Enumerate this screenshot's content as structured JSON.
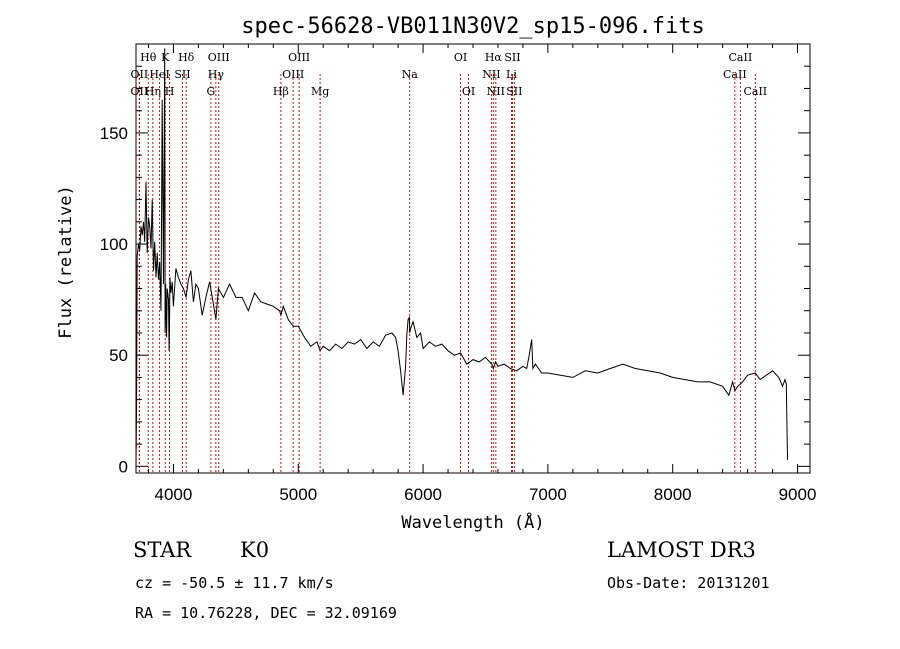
{
  "chart_data": {
    "type": "line",
    "title": "spec-56628-VB011N30V2_sp15-096.fits",
    "xlabel": "Wavelength (Å)",
    "ylabel": "Flux (relative)",
    "xlim": [
      3700,
      9100
    ],
    "ylim": [
      -3,
      190
    ],
    "xticks": [
      4000,
      5000,
      6000,
      7000,
      8000,
      9000
    ],
    "yticks": [
      0,
      50,
      100,
      150
    ],
    "series": [
      {
        "name": "flux",
        "x": [
          3700,
          3705,
          3710,
          3720,
          3730,
          3740,
          3750,
          3760,
          3770,
          3780,
          3790,
          3800,
          3810,
          3820,
          3830,
          3840,
          3850,
          3860,
          3870,
          3880,
          3890,
          3900,
          3910,
          3920,
          3930,
          3933,
          3938,
          3945,
          3950,
          3960,
          3965,
          3968,
          3972,
          3980,
          3990,
          4000,
          4020,
          4040,
          4060,
          4080,
          4101,
          4120,
          4140,
          4160,
          4180,
          4200,
          4230,
          4260,
          4290,
          4320,
          4340,
          4360,
          4400,
          4450,
          4500,
          4550,
          4600,
          4650,
          4700,
          4750,
          4800,
          4850,
          4861,
          4880,
          4920,
          4960,
          5000,
          5050,
          5100,
          5150,
          5175,
          5200,
          5250,
          5300,
          5350,
          5400,
          5450,
          5500,
          5550,
          5600,
          5650,
          5700,
          5750,
          5780,
          5800,
          5820,
          5840,
          5860,
          5870,
          5880,
          5890,
          5893,
          5900,
          5920,
          5950,
          5980,
          6000,
          6050,
          6100,
          6150,
          6200,
          6250,
          6300,
          6350,
          6400,
          6450,
          6500,
          6550,
          6563,
          6580,
          6600,
          6650,
          6700,
          6750,
          6800,
          6830,
          6850,
          6870,
          6880,
          6900,
          6950,
          7000,
          7100,
          7200,
          7300,
          7400,
          7500,
          7600,
          7700,
          7800,
          7900,
          8000,
          8100,
          8200,
          8300,
          8400,
          8450,
          8480,
          8498,
          8520,
          8542,
          8560,
          8600,
          8662,
          8700,
          8750,
          8800,
          8850,
          8880,
          8900,
          8910,
          8920
        ],
        "y": [
          0,
          30,
          95,
          100,
          97,
          108,
          104,
          110,
          101,
          128,
          96,
          112,
          108,
          98,
          120,
          88,
          101,
          85,
          96,
          84,
          92,
          70,
          165,
          82,
          188,
          60,
          82,
          58,
          80,
          75,
          52,
          63,
          85,
          78,
          83,
          72,
          89,
          85,
          82,
          80,
          76,
          84,
          88,
          74,
          82,
          80,
          68,
          76,
          83,
          73,
          66,
          80,
          76,
          82,
          76,
          76,
          70,
          78,
          74,
          73,
          72,
          70,
          68,
          72,
          66,
          63,
          63,
          58,
          54,
          56,
          52,
          54,
          52,
          55,
          53,
          56,
          55,
          57,
          53,
          56,
          54,
          59,
          60,
          58,
          52,
          43,
          32,
          45,
          59,
          66,
          67,
          60,
          62,
          65,
          58,
          60,
          53,
          56,
          54,
          55,
          52,
          50,
          51,
          46,
          48,
          47,
          49,
          46,
          44,
          47,
          45,
          46,
          44,
          43,
          45,
          44,
          50,
          57,
          44,
          46,
          42,
          42,
          41,
          40,
          43,
          42,
          44,
          46,
          44,
          43,
          42,
          40,
          39,
          38,
          38,
          36,
          32,
          38,
          34,
          36,
          37,
          38,
          41,
          42,
          39,
          41,
          43,
          40,
          36,
          39,
          37,
          3
        ]
      }
    ],
    "annotations": [
      {
        "label": "Hθ",
        "wave": 3798,
        "row": 0
      },
      {
        "label": "OII",
        "wave": 3727,
        "row": 1
      },
      {
        "label": "OII",
        "wave": 3727,
        "row": 2
      },
      {
        "label": "Hη",
        "wave": 3835,
        "row": 2
      },
      {
        "label": "K",
        "wave": 3934,
        "row": 0
      },
      {
        "label": "HeI",
        "wave": 3889,
        "row": 1
      },
      {
        "label": "H",
        "wave": 3969,
        "row": 2
      },
      {
        "label": "Hδ",
        "wave": 4102,
        "row": 0
      },
      {
        "label": "SII",
        "wave": 4072,
        "row": 1
      },
      {
        "label": "OIII",
        "wave": 4363,
        "row": 0
      },
      {
        "label": "Hγ",
        "wave": 4340,
        "row": 1
      },
      {
        "label": "G",
        "wave": 4300,
        "row": 2
      },
      {
        "label": "OIII",
        "wave": 5007,
        "row": 0
      },
      {
        "label": "OIII",
        "wave": 4959,
        "row": 1
      },
      {
        "label": "Hβ",
        "wave": 4861,
        "row": 2
      },
      {
        "label": "Mg",
        "wave": 5175,
        "row": 2
      },
      {
        "label": "Na",
        "wave": 5893,
        "row": 1
      },
      {
        "label": "OI",
        "wave": 6300,
        "row": 0
      },
      {
        "label": "OI",
        "wave": 6364,
        "row": 2
      },
      {
        "label": "Hα",
        "wave": 6563,
        "row": 0
      },
      {
        "label": "SII",
        "wave": 6716,
        "row": 0
      },
      {
        "label": "NII",
        "wave": 6548,
        "row": 1
      },
      {
        "label": "Li",
        "wave": 6708,
        "row": 1
      },
      {
        "label": "NII",
        "wave": 6583,
        "row": 2
      },
      {
        "label": "SII",
        "wave": 6731,
        "row": 2
      },
      {
        "label": "CaII",
        "wave": 8542,
        "row": 0
      },
      {
        "label": "CaII",
        "wave": 8498,
        "row": 1
      },
      {
        "label": "CaII",
        "wave": 8662,
        "row": 2
      }
    ]
  },
  "info": {
    "object_class": "STAR",
    "subclass": "K0",
    "survey": "LAMOST DR3",
    "redshift": "cz = -50.5 ± 11.7 km/s",
    "obs_date": "Obs-Date: 20131201",
    "coords": "RA =  10.76228, DEC =  32.09169"
  }
}
